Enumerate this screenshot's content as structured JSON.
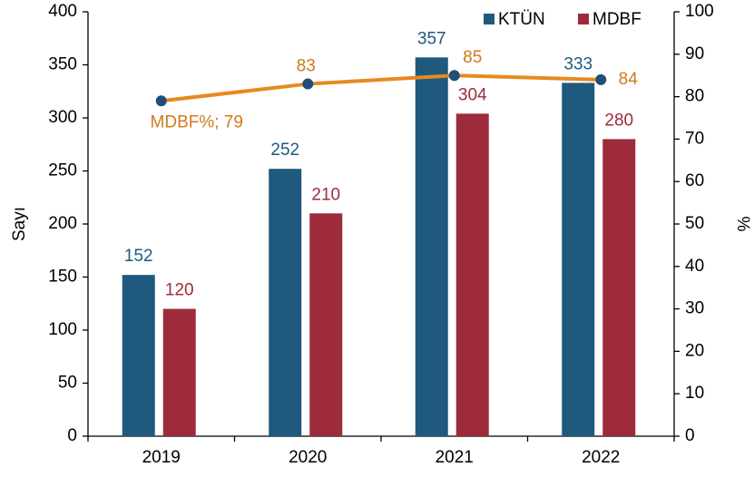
{
  "chart_data": {
    "type": "bar",
    "categories": [
      "2019",
      "2020",
      "2021",
      "2022"
    ],
    "series": [
      {
        "name": "KTÜN",
        "color": "#1f5a7e",
        "values": [
          152,
          252,
          357,
          333
        ]
      },
      {
        "name": "MDBF",
        "color": "#9e2b3b",
        "values": [
          120,
          210,
          304,
          280
        ]
      },
      {
        "type": "line",
        "axis": "y2",
        "color": "#e8891e",
        "marker_color": "#1f4e79",
        "values": [
          79,
          83,
          85,
          84
        ],
        "value_labels": [
          "MDBF%; 79",
          "83",
          "85",
          "84"
        ],
        "label_color": "#d07a1a"
      }
    ],
    "ylabel": "Sayı",
    "y2label": "%",
    "ylim": [
      0,
      400
    ],
    "yticks": [
      0,
      50,
      100,
      150,
      200,
      250,
      300,
      350,
      400
    ],
    "y2lim": [
      0,
      100
    ],
    "y2ticks": [
      0,
      10,
      20,
      30,
      40,
      50,
      60,
      70,
      80,
      90,
      100
    ],
    "grid": false,
    "legend": "top-right"
  }
}
